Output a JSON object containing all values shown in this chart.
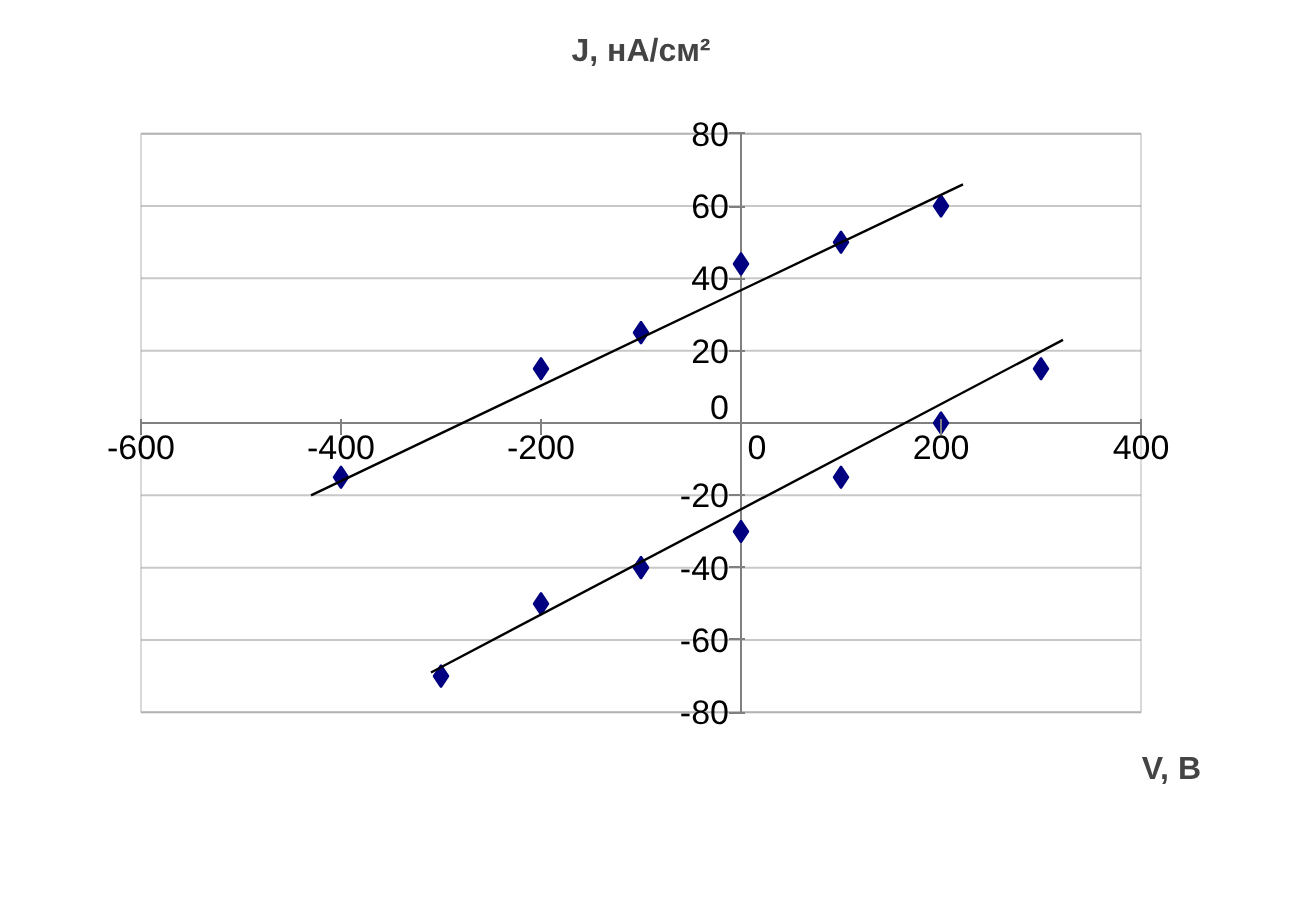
{
  "chart_data": {
    "type": "scatter",
    "xlabel": "V, В",
    "ylabel": "J, нА/см²",
    "grid": "y",
    "xlim": [
      -600,
      400
    ],
    "xticks": [
      -600,
      -400,
      -200,
      0,
      200,
      400
    ],
    "ylim": [
      -80,
      80
    ],
    "yticks": [
      -80,
      -60,
      -40,
      -20,
      0,
      20,
      40,
      60,
      80
    ],
    "series": [
      {
        "color": "#000080",
        "marker": "diamond",
        "x": [
          -400,
          -200,
          -100,
          0,
          100,
          200
        ],
        "values": [
          -15,
          15,
          25,
          44,
          50,
          60
        ]
      },
      {
        "color": "#000080",
        "marker": "diamond",
        "x": [
          -300,
          -200,
          -100,
          0,
          100,
          200,
          300
        ],
        "values": [
          -70,
          -50,
          -40,
          -30,
          -15,
          0,
          15
        ]
      },
      {
        "type": "line",
        "color": "#000000",
        "marker": "none",
        "x": [
          -430,
          222
        ],
        "values": [
          -20,
          66
        ]
      },
      {
        "type": "line",
        "color": "#000000",
        "marker": "none",
        "x": [
          -310,
          322
        ],
        "values": [
          -69,
          23
        ]
      }
    ]
  }
}
